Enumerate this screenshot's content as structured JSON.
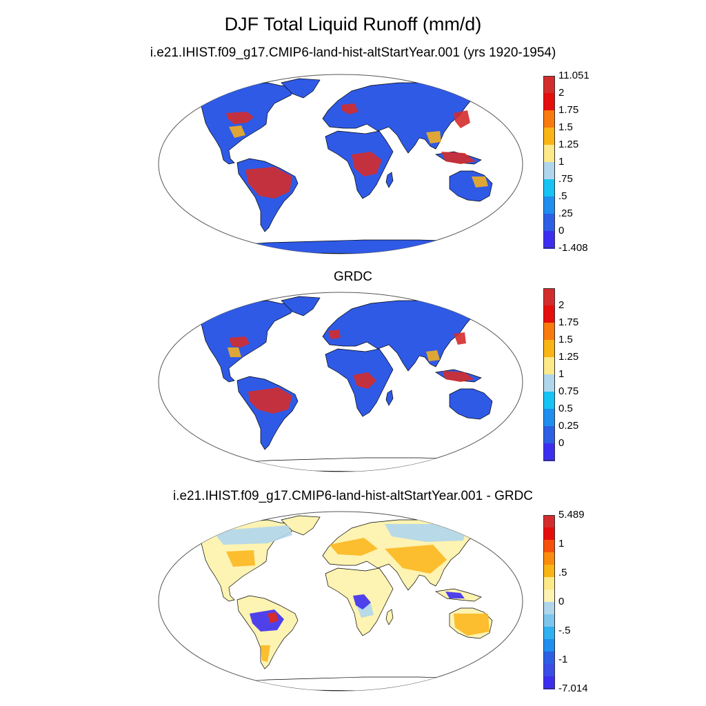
{
  "title": "DJF Total Liquid Runoff (mm/d)",
  "panels": [
    {
      "id": "model",
      "subtitle": "i.e21.IHIST.f09_g17.CMIP6-land-hist-altStartYear.001 (yrs 1920-1954)",
      "colorbar": {
        "labels": [
          "11.051",
          "2",
          "1.75",
          "1.5",
          "1.25",
          "1",
          ".75",
          ".5",
          ".25",
          "0",
          "-1.408"
        ],
        "colors": [
          "#d42c2c",
          "#e60d0d",
          "#f97a0d",
          "#fbb416",
          "#fde989",
          "#b0d6ec",
          "#16c3f4",
          "#1e8ef0",
          "#2c5fe3",
          "#3c2ef0"
        ]
      }
    },
    {
      "id": "obs",
      "subtitle": "GRDC",
      "colorbar": {
        "labels": [
          "2",
          "1.75",
          "1.5",
          "1.25",
          "1",
          "0.75",
          "0.5",
          "0.25",
          "0"
        ],
        "colors": [
          "#d42c2c",
          "#e60d0d",
          "#f97a0d",
          "#fbb416",
          "#fde989",
          "#b0d6ec",
          "#16c3f4",
          "#1e8ef0",
          "#2c5fe3",
          "#3c2ef0"
        ]
      }
    },
    {
      "id": "diff",
      "subtitle": "i.e21.IHIST.f09_g17.CMIP6-land-hist-altStartYear.001 - GRDC",
      "colorbar": {
        "labels": [
          "5.489",
          "1",
          ".5",
          "0",
          "-.5",
          "-1",
          "-7.014"
        ],
        "colors": [
          "#d42c2c",
          "#e60d0d",
          "#f7500d",
          "#fb8c0d",
          "#fbb416",
          "#fde989",
          "#fdf3b2",
          "#b0d6ec",
          "#7cc6ee",
          "#2fb0f0",
          "#1e8ef0",
          "#2c5fe3",
          "#3a4de8",
          "#3c2ef0"
        ]
      }
    }
  ],
  "map_style": {
    "land_base_model": "#2f5ae6",
    "land_base_obs": "#2f5ae6",
    "land_base_diff": "#fdf3b2",
    "wet_color": "#d42c2c",
    "mid_color": "#fbb416",
    "ocean": "#ffffff",
    "coast": "#000000"
  }
}
